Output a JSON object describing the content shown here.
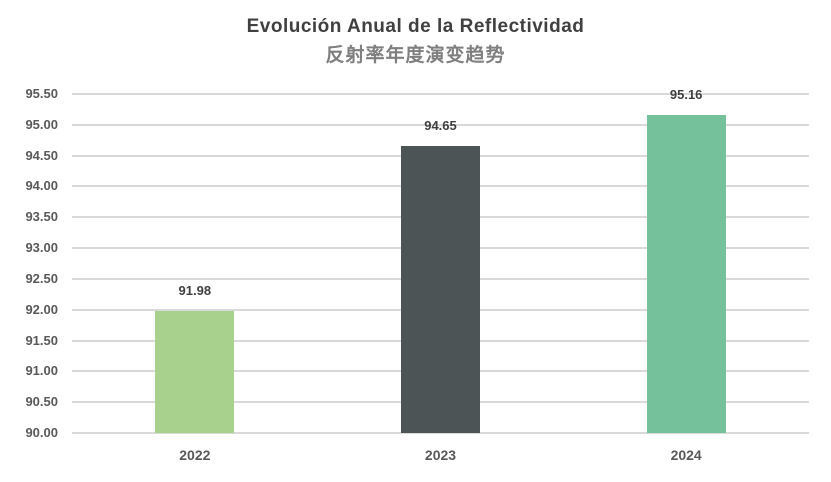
{
  "chart": {
    "title": "Evolución Anual de la Reflectividad",
    "subtitle": "反射率年度演变趋势"
  },
  "chart_data": {
    "type": "bar",
    "title": "Evolución Anual de la Reflectividad",
    "subtitle": "反射率年度演变趋势",
    "categories": [
      "2022",
      "2023",
      "2024"
    ],
    "values": [
      91.98,
      94.65,
      95.16
    ],
    "data_labels": [
      "91.98",
      "94.65",
      "95.16"
    ],
    "bar_colors": [
      "#a9d18e",
      "#4d5456",
      "#74c19c"
    ],
    "xlabel": "",
    "ylabel": "",
    "ylim": [
      90.0,
      95.5
    ],
    "ytick_step": 0.5,
    "yticks": [
      "95.50",
      "95.00",
      "94.50",
      "94.00",
      "93.50",
      "93.00",
      "92.50",
      "92.00",
      "91.50",
      "91.00",
      "90.50",
      "90.00"
    ],
    "grid": "horizontal",
    "legend": "none",
    "colors": {
      "background": "#ffffff",
      "gridline": "#d9d9d9",
      "axis_line": "#d9d9d9",
      "title": "#404040",
      "subtitle": "#7f7f7f",
      "tick_label": "#595959",
      "data_label": "#404040"
    }
  }
}
